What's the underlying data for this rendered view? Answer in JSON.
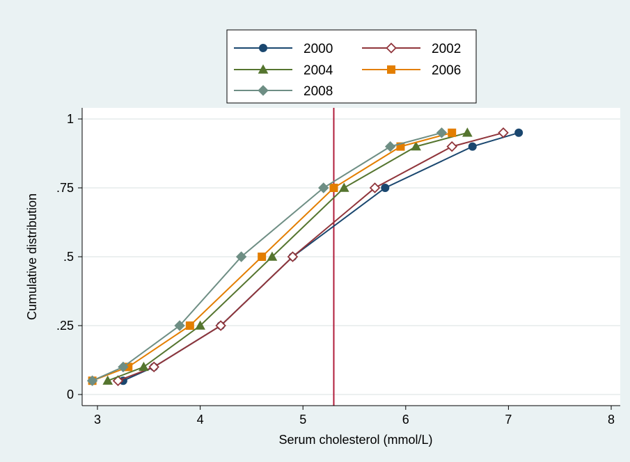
{
  "chart_data": {
    "type": "line",
    "title": "",
    "xlabel": "Serum cholesterol (mmol/L)",
    "ylabel": "Cumulative distribution",
    "xlim": [
      3,
      8
    ],
    "ylim": [
      0,
      1
    ],
    "x_ticks": [
      3,
      4,
      5,
      6,
      7,
      8
    ],
    "x_tick_labels": [
      "3",
      "4",
      "5",
      "6",
      "7",
      "8"
    ],
    "y_ticks": [
      0,
      0.25,
      0.5,
      0.75,
      1
    ],
    "y_tick_labels": [
      "0",
      ".25",
      ".5",
      ".75",
      "1"
    ],
    "grid": "horizontal",
    "legend_position": "top-center",
    "reference_line": {
      "x": 5.3,
      "color": "#b01c3a"
    },
    "series": [
      {
        "name": "2000",
        "color": "#1a476f",
        "marker": "circle-filled",
        "points": [
          [
            3.25,
            0.05
          ],
          [
            3.55,
            0.1
          ],
          [
            4.2,
            0.25
          ],
          [
            4.9,
            0.5
          ],
          [
            5.8,
            0.75
          ],
          [
            6.65,
            0.9
          ],
          [
            7.1,
            0.95
          ]
        ]
      },
      {
        "name": "2002",
        "color": "#90353b",
        "marker": "diamond-open",
        "points": [
          [
            3.2,
            0.05
          ],
          [
            3.55,
            0.1
          ],
          [
            4.2,
            0.25
          ],
          [
            4.9,
            0.5
          ],
          [
            5.7,
            0.75
          ],
          [
            6.45,
            0.9
          ],
          [
            6.95,
            0.95
          ]
        ]
      },
      {
        "name": "2004",
        "color": "#55752f",
        "marker": "triangle-filled",
        "points": [
          [
            3.1,
            0.05
          ],
          [
            3.45,
            0.1
          ],
          [
            4.0,
            0.25
          ],
          [
            4.7,
            0.5
          ],
          [
            5.4,
            0.75
          ],
          [
            6.1,
            0.9
          ],
          [
            6.6,
            0.95
          ]
        ]
      },
      {
        "name": "2006",
        "color": "#e37e00",
        "marker": "square-filled",
        "points": [
          [
            2.95,
            0.05
          ],
          [
            3.3,
            0.1
          ],
          [
            3.9,
            0.25
          ],
          [
            4.6,
            0.5
          ],
          [
            5.3,
            0.75
          ],
          [
            5.95,
            0.9
          ],
          [
            6.45,
            0.95
          ]
        ]
      },
      {
        "name": "2008",
        "color": "#6e8e84",
        "marker": "diamond-filled",
        "points": [
          [
            2.95,
            0.05
          ],
          [
            3.25,
            0.1
          ],
          [
            3.8,
            0.25
          ],
          [
            4.4,
            0.5
          ],
          [
            5.2,
            0.75
          ],
          [
            5.85,
            0.9
          ],
          [
            6.35,
            0.95
          ]
        ]
      }
    ]
  }
}
